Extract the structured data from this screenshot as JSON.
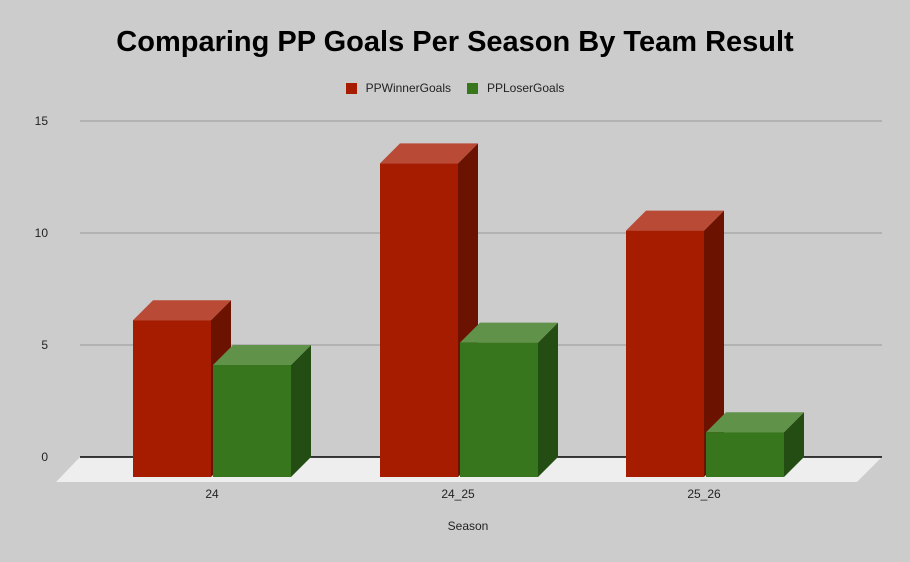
{
  "title": "Comparing PP Goals Per Season By Team Result",
  "legend": [
    {
      "name": "PPWinnerGoals",
      "color": "#a61c00"
    },
    {
      "name": "PPLoserGoals",
      "color": "#38761d"
    }
  ],
  "y_ticks": [
    "0",
    "5",
    "10",
    "15"
  ],
  "x_labels": [
    "24",
    "24_25",
    "25_26"
  ],
  "x_axis_title": "Season",
  "chart_data": {
    "type": "bar",
    "style": "3d-column",
    "title": "Comparing PP Goals Per Season By Team Result",
    "categories": [
      "24",
      "24_25",
      "25_26"
    ],
    "series": [
      {
        "name": "PPWinnerGoals",
        "values": [
          7,
          14,
          11
        ],
        "color": "#a61c00"
      },
      {
        "name": "PPLoserGoals",
        "values": [
          5,
          6,
          2
        ],
        "color": "#38761d"
      }
    ],
    "xlabel": "Season",
    "ylabel": "",
    "ylim": [
      0,
      15
    ],
    "yticks": [
      0,
      5,
      10,
      15
    ],
    "grid": true,
    "legend_position": "top"
  }
}
